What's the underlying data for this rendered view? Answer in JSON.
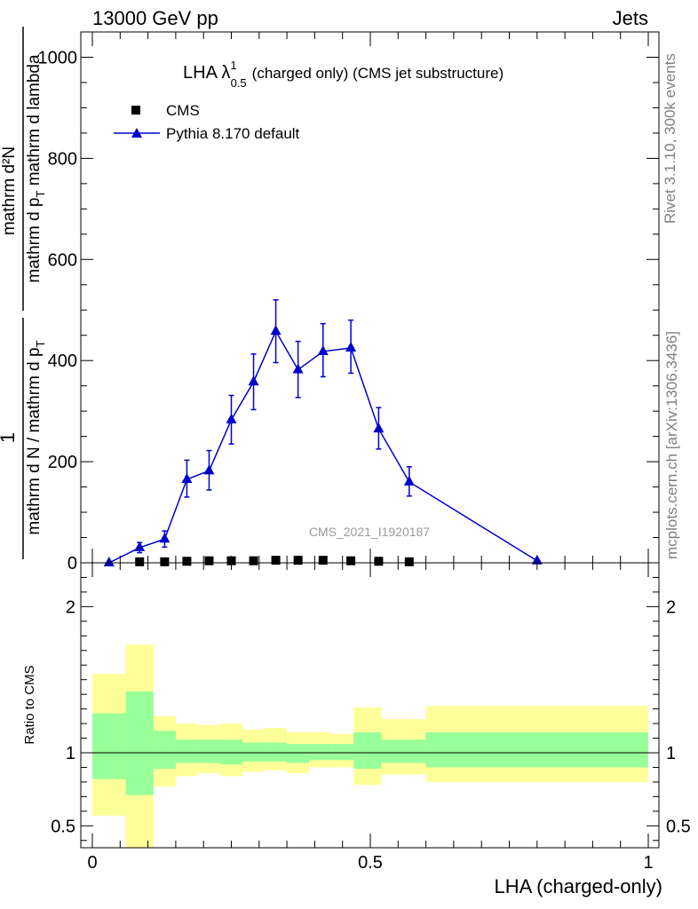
{
  "header": {
    "left": "13000 GeV pp",
    "right": "Jets"
  },
  "side_labels": {
    "rivet": "Rivet 3.1.10,  300k events",
    "mcplots": "mcplots.cern.ch [arXiv:1306.3436]"
  },
  "analysis_id": "CMS_2021_I1920187",
  "colors": {
    "pythia": "#0000cc",
    "cms": "#000000",
    "band_inner": "#99ff99",
    "band_outer": "#ffff99"
  },
  "chart_data": [
    {
      "type": "line",
      "title": {
        "main": "LHA λ",
        "sup": "1",
        "sub": "0.5",
        "rest": "(charged only) (CMS jet substructure)"
      },
      "ylabel": {
        "numerator": "1",
        "denominator": "mathrm d N / mathrm d p",
        "denominator_sub": "T",
        "numerator2": "mathrm d²N",
        "denominator2": "mathrm d p",
        "denominator2_sub": "T",
        "denominator2_rest": " mathrm d lambda"
      },
      "xlim": [
        0,
        1
      ],
      "ylim": [
        0,
        1050
      ],
      "yticks": [
        0,
        200,
        400,
        600,
        800,
        1000
      ],
      "grid": false,
      "legend_position": "top-left",
      "series": [
        {
          "name": "CMS",
          "marker": "square",
          "x": [
            0.085,
            0.13,
            0.17,
            0.21,
            0.25,
            0.29,
            0.33,
            0.37,
            0.415,
            0.465,
            0.515,
            0.57
          ],
          "y": [
            2,
            2,
            3,
            4,
            4,
            4,
            5,
            5,
            5,
            4,
            3,
            2
          ]
        },
        {
          "name": "Pythia 8.170 default",
          "marker": "triangle",
          "x": [
            0.03,
            0.085,
            0.13,
            0.17,
            0.21,
            0.25,
            0.29,
            0.33,
            0.37,
            0.415,
            0.465,
            0.515,
            0.57,
            0.8
          ],
          "y": [
            0,
            30,
            47,
            165,
            182,
            283,
            358,
            458,
            382,
            418,
            425,
            265,
            160,
            4
          ],
          "yerr_low": [
            0,
            10,
            16,
            35,
            38,
            48,
            55,
            62,
            55,
            50,
            50,
            40,
            28,
            1
          ],
          "yerr_high": [
            0,
            10,
            16,
            38,
            40,
            48,
            55,
            62,
            56,
            55,
            55,
            42,
            30,
            1
          ]
        }
      ]
    },
    {
      "type": "area",
      "ylabel": "Ratio to CMS",
      "xlabel": "LHA (charged-only)",
      "xlim": [
        0,
        1
      ],
      "ylim": [
        0.35,
        2.3
      ],
      "yticks": [
        0.5,
        1,
        2
      ],
      "xticks": [
        0,
        0.5,
        1
      ],
      "reference_line": 1,
      "bins": [
        0,
        0.06,
        0.11,
        0.15,
        0.19,
        0.23,
        0.27,
        0.31,
        0.35,
        0.39,
        0.43,
        0.47,
        0.52,
        0.6,
        1.0
      ],
      "inner_band": {
        "low": [
          0.82,
          0.71,
          0.89,
          0.93,
          0.93,
          0.92,
          0.94,
          0.94,
          0.93,
          0.95,
          0.95,
          0.89,
          0.93,
          0.9
        ],
        "high": [
          1.27,
          1.42,
          1.15,
          1.09,
          1.09,
          1.09,
          1.07,
          1.07,
          1.06,
          1.06,
          1.06,
          1.14,
          1.09,
          1.14
        ]
      },
      "outer_band": {
        "low": [
          0.57,
          0.35,
          0.77,
          0.84,
          0.86,
          0.84,
          0.87,
          0.88,
          0.86,
          0.9,
          0.9,
          0.78,
          0.85,
          0.8
        ],
        "high": [
          1.54,
          1.74,
          1.25,
          1.2,
          1.19,
          1.2,
          1.16,
          1.17,
          1.14,
          1.14,
          1.13,
          1.31,
          1.23,
          1.32
        ]
      }
    }
  ]
}
